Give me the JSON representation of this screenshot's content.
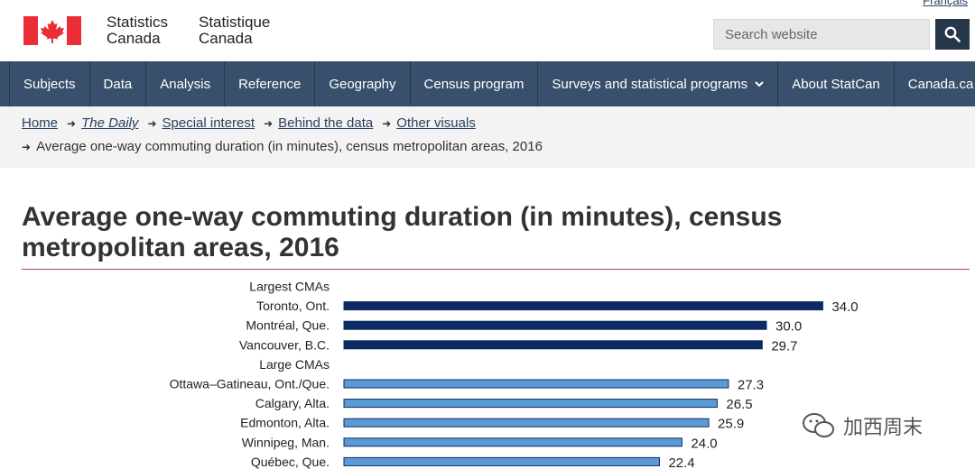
{
  "header": {
    "language_link": "Français",
    "org_name_en": [
      "Statistics",
      "Canada"
    ],
    "org_name_fr": [
      "Statistique",
      "Canada"
    ],
    "search_placeholder": "Search website"
  },
  "nav": {
    "items": [
      "Subjects",
      "Data",
      "Analysis",
      "Reference",
      "Geography",
      "Census program",
      "Surveys and statistical programs",
      "About StatCan",
      "Canada.ca"
    ]
  },
  "breadcrumb": {
    "links": [
      "Home",
      "The Daily",
      "Special interest",
      "Behind the data",
      "Other visuals"
    ],
    "current": "Average one-way commuting duration (in minutes), census metropolitan areas, 2016"
  },
  "page_title": "Average one-way commuting duration (in minutes), census metropolitan areas, 2016",
  "watermark": "加西周末",
  "colors": {
    "largest_bar": "#0b2a63",
    "large_bar": "#5b9bd5",
    "rule": "#af3c43",
    "nav": "#38506b"
  },
  "chart_data": {
    "type": "bar",
    "orientation": "horizontal",
    "title": "",
    "xlabel": "",
    "ylabel": "",
    "xlim": [
      0,
      40
    ],
    "grid": false,
    "rows": [
      {
        "label": "Largest CMAs",
        "group_header": true
      },
      {
        "label": "Toronto, Ont.",
        "value": 34.0,
        "value_label": "34.0",
        "group": "largest"
      },
      {
        "label": "Montréal, Que.",
        "value": 30.0,
        "value_label": "30.0",
        "group": "largest"
      },
      {
        "label": "Vancouver, B.C.",
        "value": 29.7,
        "value_label": "29.7",
        "group": "largest"
      },
      {
        "label": "Large CMAs",
        "group_header": true
      },
      {
        "label": "Ottawa–Gatineau, Ont./Que.",
        "value": 27.3,
        "value_label": "27.3",
        "group": "large"
      },
      {
        "label": "Calgary, Alta.",
        "value": 26.5,
        "value_label": "26.5",
        "group": "large"
      },
      {
        "label": "Edmonton, Alta.",
        "value": 25.9,
        "value_label": "25.9",
        "group": "large"
      },
      {
        "label": "Winnipeg, Man.",
        "value": 24.0,
        "value_label": "24.0",
        "group": "large"
      },
      {
        "label": "Québec, Que.",
        "value": 22.4,
        "value_label": "22.4",
        "group": "large"
      }
    ]
  }
}
